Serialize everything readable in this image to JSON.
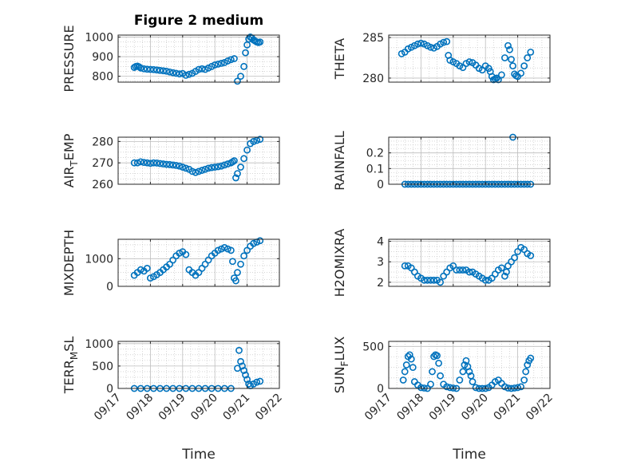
{
  "colors": {
    "marker": "#0072BD",
    "axis": "#262626",
    "grid": "#bdbdbd",
    "background": "#ffffff"
  },
  "chart_data": [
    {
      "type": "scatter",
      "title": "Figure 2 medium",
      "ylabel": "PRESSURE",
      "ylabel_sub": "",
      "x_range": [
        "09/17",
        "09/22"
      ],
      "x_ticks": [
        "09/17",
        "09/18",
        "09/19",
        "09/20",
        "09/21",
        "09/22"
      ],
      "ylim": [
        770,
        1010
      ],
      "y_ticks": [
        800,
        900,
        1000
      ],
      "grid": true,
      "x_days": [
        0.5,
        0.55,
        0.6,
        0.65,
        0.7,
        0.8,
        0.9,
        1.0,
        1.1,
        1.2,
        1.3,
        1.4,
        1.5,
        1.6,
        1.7,
        1.8,
        1.9,
        2.0,
        2.1,
        2.2,
        2.3,
        2.4,
        2.5,
        2.6,
        2.7,
        2.8,
        2.9,
        3.0,
        3.1,
        3.2,
        3.3,
        3.4,
        3.5,
        3.6,
        3.7,
        3.8,
        3.9,
        3.95,
        4.0,
        4.05,
        4.1,
        4.15,
        4.2,
        4.25,
        4.3,
        4.35,
        4.4
      ],
      "y": [
        845,
        850,
        852,
        848,
        842,
        838,
        836,
        835,
        834,
        832,
        830,
        828,
        826,
        822,
        818,
        815,
        812,
        814,
        805,
        810,
        815,
        825,
        835,
        838,
        835,
        842,
        850,
        858,
        862,
        866,
        870,
        878,
        885,
        890,
        775,
        800,
        850,
        920,
        960,
        990,
        1000,
        995,
        985,
        980,
        975,
        972,
        975
      ]
    },
    {
      "type": "scatter",
      "title": "",
      "ylabel": "THETA",
      "ylabel_sub": "",
      "ylim": [
        279.5,
        285.3
      ],
      "y_ticks": [
        280,
        285
      ],
      "grid": true,
      "x_days": [
        0.4,
        0.5,
        0.6,
        0.7,
        0.8,
        0.9,
        1.0,
        1.1,
        1.2,
        1.3,
        1.4,
        1.5,
        1.6,
        1.7,
        1.8,
        1.85,
        1.9,
        2.0,
        2.1,
        2.2,
        2.3,
        2.4,
        2.5,
        2.6,
        2.7,
        2.8,
        2.9,
        3.0,
        3.1,
        3.15,
        3.2,
        3.25,
        3.3,
        3.35,
        3.4,
        3.5,
        3.6,
        3.7,
        3.75,
        3.8,
        3.85,
        3.9,
        3.95,
        4.0,
        4.1,
        4.2,
        4.3,
        4.4
      ],
      "y": [
        283.0,
        283.2,
        283.6,
        283.8,
        284.0,
        284.2,
        284.3,
        284.2,
        284.0,
        283.8,
        283.7,
        283.9,
        284.2,
        284.4,
        284.5,
        282.8,
        282.2,
        282.0,
        281.8,
        281.5,
        281.3,
        281.8,
        282.0,
        281.9,
        281.6,
        281.2,
        281.0,
        281.5,
        281.2,
        280.8,
        280.2,
        279.8,
        279.9,
        280.0,
        279.8,
        280.4,
        282.5,
        284.0,
        283.5,
        282.3,
        281.5,
        280.5,
        280.3,
        280.2,
        280.6,
        281.5,
        282.5,
        283.2
      ]
    },
    {
      "type": "scatter",
      "title": "",
      "ylabel": "AIR",
      "ylabel_sub": "T",
      "ylabel_suffix": "EMP",
      "ylim": [
        260,
        282
      ],
      "y_ticks": [
        260,
        270,
        280
      ],
      "grid": true,
      "x_days": [
        0.5,
        0.6,
        0.7,
        0.8,
        0.9,
        1.0,
        1.1,
        1.2,
        1.3,
        1.4,
        1.5,
        1.6,
        1.7,
        1.8,
        1.9,
        2.0,
        2.1,
        2.2,
        2.3,
        2.4,
        2.5,
        2.6,
        2.7,
        2.8,
        2.9,
        3.0,
        3.1,
        3.2,
        3.3,
        3.4,
        3.5,
        3.55,
        3.6,
        3.65,
        3.7,
        3.8,
        3.9,
        4.0,
        4.1,
        4.2,
        4.3,
        4.4
      ],
      "y": [
        270,
        270,
        270.5,
        270.2,
        270,
        269.8,
        270,
        269.9,
        269.7,
        269.5,
        269.3,
        269.2,
        269,
        268.8,
        268.5,
        268,
        267.5,
        267,
        266,
        265.5,
        266,
        266.5,
        267,
        267.5,
        267.8,
        268,
        268.2,
        268.5,
        269,
        269.5,
        270,
        270.5,
        271,
        263,
        265,
        268,
        272,
        276,
        279,
        280,
        280.5,
        281
      ]
    },
    {
      "type": "scatter",
      "title": "",
      "ylabel": "RAINFALL",
      "ylabel_sub": "",
      "ylim": [
        0,
        0.3
      ],
      "y_ticks": [
        0,
        0.1,
        0.2
      ],
      "y_tick_labels": [
        "0",
        "0.1",
        "0.2"
      ],
      "grid": true,
      "x_days": [
        0.5,
        0.6,
        0.7,
        0.8,
        0.9,
        1.0,
        1.1,
        1.2,
        1.3,
        1.4,
        1.5,
        1.6,
        1.7,
        1.8,
        1.9,
        2.0,
        2.1,
        2.2,
        2.3,
        2.4,
        2.5,
        2.6,
        2.7,
        2.8,
        2.9,
        3.0,
        3.1,
        3.2,
        3.3,
        3.4,
        3.5,
        3.6,
        3.7,
        3.8,
        3.9,
        4.0,
        4.1,
        4.2,
        4.3,
        4.4,
        3.85
      ],
      "y": [
        0,
        0,
        0,
        0,
        0,
        0,
        0,
        0,
        0,
        0,
        0,
        0,
        0,
        0,
        0,
        0,
        0,
        0,
        0,
        0,
        0,
        0,
        0,
        0,
        0,
        0,
        0,
        0,
        0,
        0,
        0,
        0,
        0,
        0,
        0,
        0,
        0,
        0,
        0,
        0,
        0.3
      ]
    },
    {
      "type": "scatter",
      "title": "",
      "ylabel": "MIXDEPTH",
      "ylabel_sub": "",
      "ylim": [
        0,
        1700
      ],
      "y_ticks": [
        0,
        1000
      ],
      "grid": true,
      "x_days": [
        0.5,
        0.6,
        0.7,
        0.8,
        0.9,
        1.0,
        1.1,
        1.2,
        1.3,
        1.4,
        1.5,
        1.6,
        1.7,
        1.8,
        1.9,
        2.0,
        2.1,
        2.2,
        2.3,
        2.4,
        2.5,
        2.6,
        2.7,
        2.8,
        2.9,
        3.0,
        3.1,
        3.2,
        3.3,
        3.4,
        3.5,
        3.55,
        3.6,
        3.65,
        3.7,
        3.8,
        3.9,
        4.0,
        4.1,
        4.2,
        4.3,
        4.4
      ],
      "y": [
        400,
        500,
        600,
        550,
        650,
        300,
        350,
        420,
        500,
        600,
        700,
        800,
        950,
        1100,
        1200,
        1250,
        1150,
        600,
        500,
        400,
        500,
        650,
        800,
        950,
        1100,
        1200,
        1300,
        1350,
        1400,
        1350,
        1300,
        900,
        300,
        200,
        500,
        800,
        1100,
        1300,
        1450,
        1550,
        1600,
        1650
      ]
    },
    {
      "type": "scatter",
      "title": "",
      "ylabel": "H2OMIXRA",
      "ylabel_sub": "",
      "ylim": [
        1.8,
        4.1
      ],
      "y_ticks": [
        2,
        3,
        4
      ],
      "grid": true,
      "x_days": [
        0.5,
        0.6,
        0.7,
        0.8,
        0.9,
        1.0,
        1.1,
        1.2,
        1.3,
        1.4,
        1.5,
        1.6,
        1.7,
        1.8,
        1.9,
        2.0,
        2.1,
        2.2,
        2.3,
        2.4,
        2.5,
        2.6,
        2.7,
        2.8,
        2.9,
        3.0,
        3.1,
        3.2,
        3.3,
        3.4,
        3.5,
        3.6,
        3.65,
        3.7,
        3.8,
        3.9,
        4.0,
        4.1,
        4.2,
        4.3,
        4.4
      ],
      "y": [
        2.8,
        2.8,
        2.7,
        2.5,
        2.3,
        2.2,
        2.1,
        2.1,
        2.1,
        2.1,
        2.1,
        2.0,
        2.3,
        2.5,
        2.7,
        2.8,
        2.6,
        2.6,
        2.6,
        2.6,
        2.5,
        2.5,
        2.4,
        2.3,
        2.2,
        2.1,
        2.1,
        2.2,
        2.4,
        2.6,
        2.7,
        2.3,
        2.5,
        2.8,
        3.0,
        3.2,
        3.5,
        3.7,
        3.6,
        3.4,
        3.3
      ]
    },
    {
      "type": "scatter",
      "title": "",
      "ylabel": "TERR",
      "ylabel_sub": "M",
      "ylabel_suffix": "SL",
      "ylim": [
        0,
        1050
      ],
      "y_ticks": [
        0,
        500,
        1000
      ],
      "grid": true,
      "x_days": [
        0.5,
        0.7,
        0.9,
        1.1,
        1.3,
        1.5,
        1.7,
        1.9,
        2.1,
        2.3,
        2.5,
        2.7,
        2.9,
        3.1,
        3.3,
        3.5,
        3.7,
        3.75,
        3.8,
        3.85,
        3.9,
        3.95,
        4.0,
        4.05,
        4.1,
        4.2,
        4.3,
        4.4
      ],
      "y": [
        0,
        0,
        0,
        0,
        0,
        0,
        0,
        0,
        0,
        0,
        0,
        0,
        0,
        0,
        0,
        0,
        450,
        850,
        600,
        500,
        400,
        300,
        200,
        100,
        60,
        100,
        140,
        160
      ]
    },
    {
      "type": "scatter",
      "title": "",
      "ylabel": "SUN",
      "ylabel_sub": "F",
      "ylabel_suffix": "LUX",
      "ylim": [
        0,
        560
      ],
      "y_ticks": [
        0,
        500
      ],
      "grid": true,
      "x_days": [
        0.45,
        0.5,
        0.55,
        0.6,
        0.65,
        0.7,
        0.75,
        0.8,
        0.9,
        1.0,
        1.1,
        1.2,
        1.3,
        1.35,
        1.4,
        1.45,
        1.5,
        1.55,
        1.6,
        1.7,
        1.8,
        1.9,
        2.0,
        2.1,
        2.2,
        2.3,
        2.35,
        2.4,
        2.45,
        2.5,
        2.55,
        2.6,
        2.7,
        2.8,
        2.9,
        3.0,
        3.1,
        3.2,
        3.3,
        3.4,
        3.5,
        3.6,
        3.7,
        3.8,
        3.9,
        4.0,
        4.1,
        4.2,
        4.25,
        4.3,
        4.35,
        4.4
      ],
      "y": [
        100,
        200,
        280,
        380,
        400,
        350,
        250,
        80,
        40,
        10,
        5,
        0,
        50,
        200,
        380,
        400,
        390,
        300,
        150,
        50,
        20,
        10,
        5,
        0,
        100,
        200,
        280,
        330,
        260,
        200,
        150,
        80,
        10,
        0,
        0,
        0,
        10,
        40,
        80,
        100,
        60,
        20,
        5,
        0,
        5,
        10,
        20,
        100,
        200,
        280,
        330,
        360
      ]
    }
  ],
  "xlabel": "Time"
}
